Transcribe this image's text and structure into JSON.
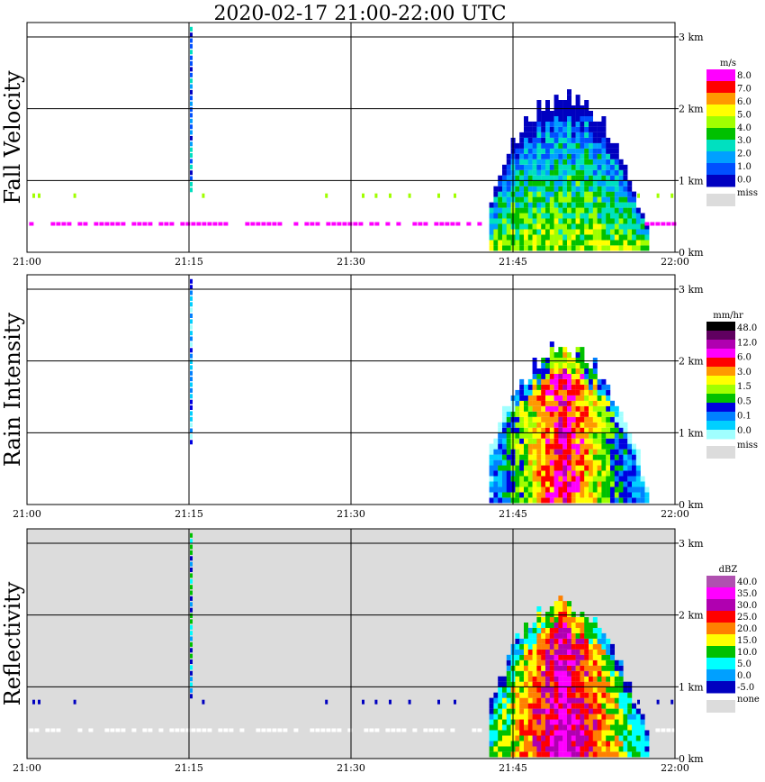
{
  "title": "2020-02-17   21:00-22:00 UTC",
  "x_ticks": [
    "21:00",
    "21:15",
    "21:30",
    "21:45",
    "22:00"
  ],
  "height_ticks": [
    "0 km",
    "1 km",
    "2 km",
    "3 km"
  ],
  "panels": [
    {
      "ylabel": "Fall Velocity",
      "colorbar": {
        "unit": "m/s",
        "labels": [
          "8.0",
          "7.0",
          "6.0",
          "5.0",
          "4.0",
          "3.0",
          "2.0",
          "1.0",
          "0.0"
        ],
        "colors": [
          "#ff00ff",
          "#ff0000",
          "#ff9900",
          "#ffff00",
          "#a0ff00",
          "#00c000",
          "#00e0c0",
          "#00a0ff",
          "#0050ff",
          "#0000c0"
        ],
        "missing_label": "miss",
        "missing_color": "#dcdcdc"
      }
    },
    {
      "ylabel": "Rain Intensity",
      "colorbar": {
        "unit": "mm/hr",
        "labels": [
          "48.0",
          "12.0",
          "6.0",
          "3.0",
          "1.5",
          "0.5",
          "0.1",
          "0.0"
        ],
        "colors": [
          "#000000",
          "#600060",
          "#b000b0",
          "#ff00ff",
          "#ff0000",
          "#ff9900",
          "#ffff00",
          "#a0ff00",
          "#00c000",
          "#0000e0",
          "#0080ff",
          "#00d0ff",
          "#a0ffff"
        ],
        "missing_label": "miss",
        "missing_color": "#dcdcdc"
      }
    },
    {
      "ylabel": "Reflectivity",
      "colorbar": {
        "unit": "dBZ",
        "labels": [
          "40.0",
          "35.0",
          "30.0",
          "25.0",
          "20.0",
          "15.0",
          "10.0",
          "5.0",
          "0.0",
          "-5.0"
        ],
        "colors": [
          "#b050b0",
          "#ff00ff",
          "#b000b0",
          "#ff0000",
          "#ff8000",
          "#ffff00",
          "#00c000",
          "#00ffff",
          "#00a0ff",
          "#0000c0"
        ],
        "missing_label": "none",
        "missing_color": "#dcdcdc"
      }
    }
  ],
  "colors": {
    "fall_velocity_bins": [
      "#0000c0",
      "#0050ff",
      "#00a0ff",
      "#00e0c0",
      "#00c000",
      "#a0ff00",
      "#ffff00",
      "#ff9900",
      "#ff0000",
      "#ff00ff"
    ],
    "rain_intensity_bins": [
      "#a0ffff",
      "#00d0ff",
      "#0080ff",
      "#0000e0",
      "#00c000",
      "#a0ff00",
      "#ffff00",
      "#ff9900",
      "#ff0000",
      "#ff00ff",
      "#b000b0"
    ],
    "reflectivity_bins": [
      "#0000c0",
      "#00a0ff",
      "#00ffff",
      "#00c000",
      "#ffff00",
      "#ff8000",
      "#ff0000",
      "#b000b0",
      "#ff00ff"
    ],
    "panel3_background": "#dcdcdc",
    "velocity_ground_row": "#ff00ff",
    "velocity_low_row": "#a0ff00"
  },
  "chart_data": [
    {
      "type": "heatmap",
      "quantity": "Fall Velocity",
      "unit": "m/s",
      "x_range": [
        "21:00",
        "22:00"
      ],
      "y_range_km": [
        0,
        3.2
      ],
      "echo_time_range": [
        "21:42",
        "21:57"
      ],
      "echo_top_km": 2.2,
      "value_range": [
        0.0,
        8.0
      ]
    },
    {
      "type": "heatmap",
      "quantity": "Rain Intensity",
      "unit": "mm/hr",
      "x_range": [
        "21:00",
        "22:00"
      ],
      "y_range_km": [
        0,
        3.2
      ],
      "echo_time_range": [
        "21:43",
        "21:57"
      ],
      "echo_top_km": 2.2,
      "value_range": [
        0.0,
        48.0
      ]
    },
    {
      "type": "heatmap",
      "quantity": "Reflectivity",
      "unit": "dBZ",
      "x_range": [
        "21:00",
        "22:00"
      ],
      "y_range_km": [
        0,
        3.2
      ],
      "echo_time_range": [
        "21:43",
        "21:57"
      ],
      "echo_top_km": 2.2,
      "value_range": [
        -5.0,
        40.0
      ]
    }
  ]
}
